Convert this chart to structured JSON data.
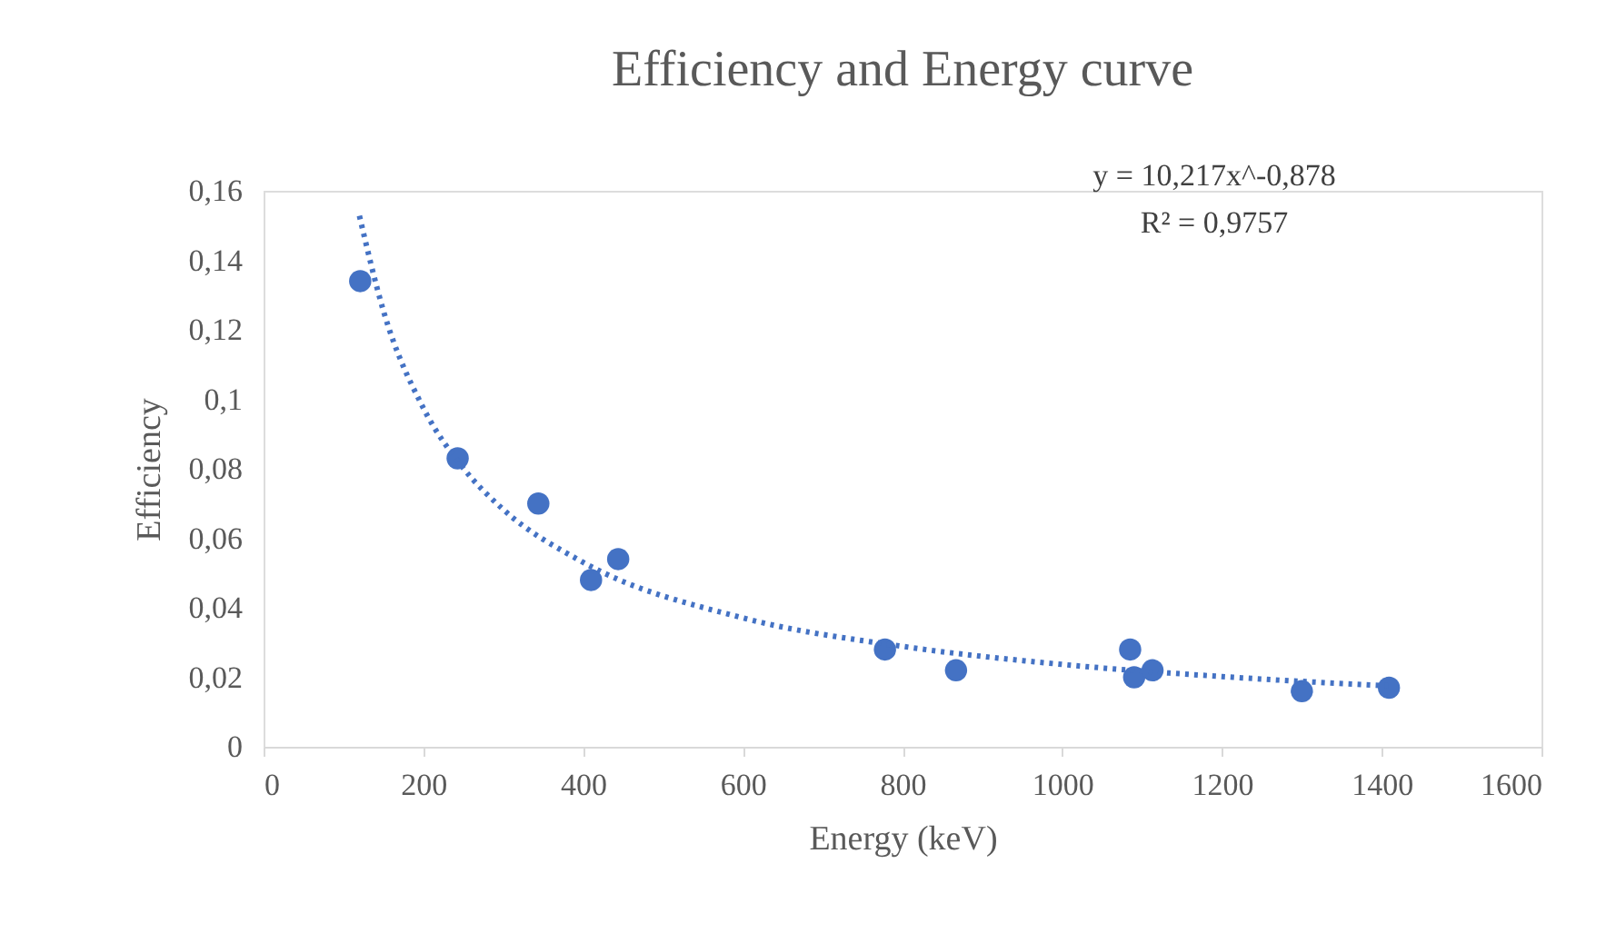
{
  "chart_data": {
    "type": "scatter",
    "title": "Efficiency and Energy curve",
    "xlabel": "Energy (keV)",
    "ylabel": "Efficiency",
    "xlim": [
      0,
      1600
    ],
    "xticks": [
      0,
      200,
      400,
      600,
      800,
      1000,
      1200,
      1400,
      1600
    ],
    "ylim": [
      0,
      0.16
    ],
    "yticks": [
      0,
      {
        "value": 0.02,
        "label": "0,02"
      },
      {
        "value": 0.04,
        "label": "0,04"
      },
      {
        "value": 0.06,
        "label": "0,06"
      },
      {
        "value": 0.08,
        "label": "0,08"
      },
      {
        "value": 0.1,
        "label": "0,1"
      },
      {
        "value": 0.12,
        "label": "0,12"
      },
      {
        "value": 0.14,
        "label": "0,14"
      },
      {
        "value": 0.16,
        "label": "0,16"
      }
    ],
    "grid": false,
    "marker": "circle",
    "series": [
      {
        "color": "#4472c4",
        "x": [
          121,
          243,
          344,
          410,
          444,
          778,
          867,
          1085,
          1090,
          1113,
          1300,
          1409
        ],
        "values": [
          0.134,
          0.083,
          0.07,
          0.048,
          0.054,
          0.028,
          0.022,
          0.028,
          0.02,
          0.022,
          0.016,
          0.017
        ]
      },
      {
        "type": "line",
        "color": "#4472c4",
        "line_style": "dotted",
        "marker": "none",
        "x": [
          120,
          150,
          200,
          250,
          300,
          400,
          600,
          800,
          1000,
          1200,
          1410
        ],
        "values": [
          0.1528,
          0.1255,
          0.0975,
          0.0802,
          0.0683,
          0.0531,
          0.0371,
          0.0289,
          0.0237,
          0.0202,
          0.0175
        ]
      }
    ],
    "annotations": [
      "y = 10,217x^-0,878",
      "R² = 0,9757"
    ]
  }
}
